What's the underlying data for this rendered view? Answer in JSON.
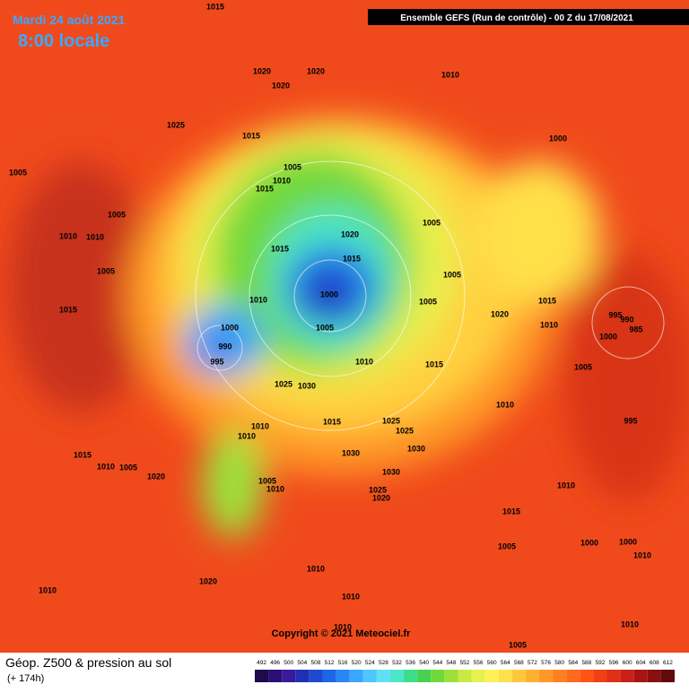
{
  "header": {
    "date": "Mardi 24 août 2021",
    "time": "8:00 locale",
    "run": "Ensemble GEFS (Run de contrôle)  -  00 Z du 17/08/2021"
  },
  "footer": {
    "title": "Géop. Z500 & pression au sol",
    "lead": "(+ 174h)",
    "copyright": "Copyright © 2021 Meteociel.fr"
  },
  "legend": {
    "labels": [
      492,
      496,
      500,
      504,
      508,
      512,
      516,
      520,
      524,
      528,
      532,
      536,
      540,
      544,
      548,
      552,
      556,
      560,
      564,
      568,
      572,
      576,
      580,
      584,
      588,
      592,
      596,
      600,
      604,
      608,
      612
    ],
    "colors": [
      "#1e0b4b",
      "#2b0f74",
      "#3a1a99",
      "#2030b0",
      "#1f4ad0",
      "#1e66e8",
      "#2a86f5",
      "#3aa6ff",
      "#4ec6ff",
      "#5fe0f5",
      "#4ce6c8",
      "#3fdc8a",
      "#46d24e",
      "#6fd83a",
      "#9ee03a",
      "#c8ea45",
      "#e8f050",
      "#fff05a",
      "#ffe04a",
      "#ffc83c",
      "#ffb030",
      "#ff9828",
      "#ff8020",
      "#ff6a1c",
      "#ff5418",
      "#f04018",
      "#e03018",
      "#c82018",
      "#a81414",
      "#881010",
      "#600a0a"
    ]
  },
  "pressure_labels": [
    1015,
    1020,
    1020,
    1020,
    1010,
    1025,
    1015,
    1000,
    1005,
    1005,
    1010,
    1015,
    1005,
    1005,
    1010,
    1010,
    1020,
    1015,
    1015,
    1005,
    1005,
    1000,
    1010,
    1005,
    1020,
    1015,
    1015,
    995,
    990,
    985,
    1000,
    1005,
    1010,
    1000,
    990,
    995,
    1010,
    1015,
    1025,
    1030,
    1005,
    1010,
    995,
    1015,
    1025,
    1010,
    1025,
    1030,
    1030,
    1010,
    1015,
    1010,
    1005,
    1020,
    1030,
    1005,
    1010,
    1025,
    1020,
    1010,
    1015,
    1005,
    1000,
    1000,
    1010,
    1010,
    1020,
    1010,
    1010,
    1010,
    1010,
    1005
  ]
}
